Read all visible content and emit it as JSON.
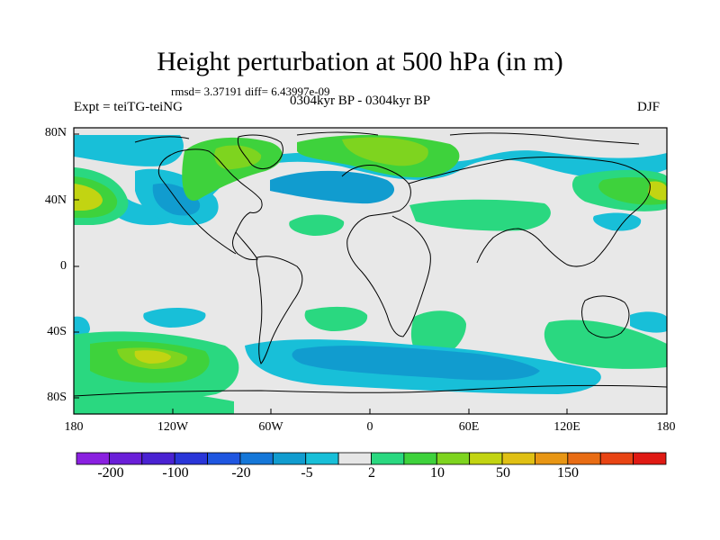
{
  "map": {
    "title": "Height perturbation at 500 hPa (in m)",
    "stats": "rmsd= 3.37191 diff= 6.43997e-09",
    "left_label": "Expt = teiTG-teiNG",
    "center_label": "0304kyr BP - 0304kyr BP",
    "right_label": "DJF",
    "lat_ticks": [
      "80N",
      "40N",
      "0",
      "40S",
      "80S"
    ],
    "lon_ticks": [
      "180",
      "120W",
      "60W",
      "0",
      "60E",
      "120E",
      "180"
    ],
    "projection": "cylindrical equidistant",
    "background_color": "#e8e8e8"
  },
  "colorbar": {
    "colors": [
      "#8a20e0",
      "#6a1fd8",
      "#4a22d2",
      "#2a36d8",
      "#1f56e0",
      "#1577d8",
      "#119ccf",
      "#18bfd8",
      "#e6e6e6",
      "#2ad880",
      "#3ed23c",
      "#7ed41f",
      "#c2d412",
      "#e0c014",
      "#e89614",
      "#e86c14",
      "#e84414",
      "#e01a14"
    ],
    "labels": [
      "-200",
      "-100",
      "-20",
      "-5",
      "2",
      "10",
      "50",
      "150"
    ]
  }
}
